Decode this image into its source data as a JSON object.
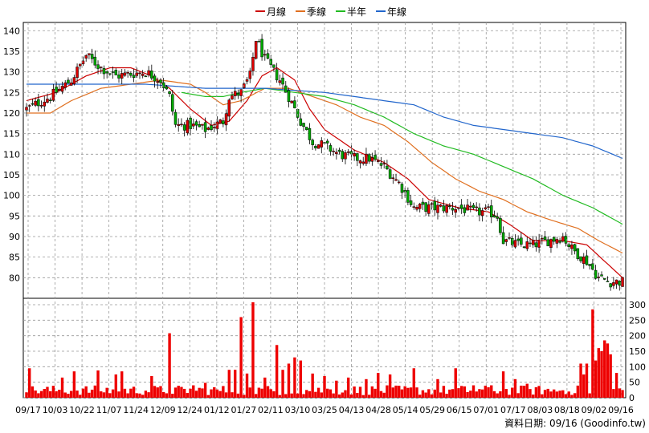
{
  "chart_data": [
    {
      "type": "candlestick",
      "legend": [
        {
          "name": "月線",
          "color": "#cc0000"
        },
        {
          "name": "季線",
          "color": "#e07020"
        },
        {
          "name": "半年",
          "color": "#22bb22"
        },
        {
          "name": "年線",
          "color": "#2266cc"
        }
      ],
      "legend_position": "top-center",
      "grid": true,
      "ylim": [
        75,
        142
      ],
      "yticks": [
        80,
        85,
        90,
        95,
        100,
        105,
        110,
        115,
        120,
        125,
        130,
        135,
        140
      ],
      "x_ticks": [
        "09/17",
        "10/03",
        "10/22",
        "11/07",
        "11/24",
        "12/09",
        "12/24",
        "01/12",
        "01/27",
        "02/11",
        "03/10",
        "03/25",
        "04/13",
        "04/28",
        "05/14",
        "05/29",
        "06/15",
        "07/01",
        "07/17",
        "08/03",
        "08/18",
        "09/02",
        "09/16"
      ],
      "close_anchors": [
        [
          0,
          121
        ],
        [
          8,
          124
        ],
        [
          15,
          128
        ],
        [
          20,
          134
        ],
        [
          25,
          131
        ],
        [
          30,
          129
        ],
        [
          40,
          130
        ],
        [
          45,
          128
        ],
        [
          48,
          124
        ],
        [
          50,
          117
        ],
        [
          55,
          117
        ],
        [
          60,
          116
        ],
        [
          66,
          118
        ],
        [
          68,
          124
        ],
        [
          72,
          125
        ],
        [
          75,
          129
        ],
        [
          77,
          138
        ],
        [
          80,
          133
        ],
        [
          85,
          128
        ],
        [
          88,
          124
        ],
        [
          92,
          118
        ],
        [
          96,
          113
        ],
        [
          100,
          112
        ],
        [
          105,
          110
        ],
        [
          110,
          109
        ],
        [
          115,
          109
        ],
        [
          120,
          107
        ],
        [
          125,
          103
        ],
        [
          130,
          97
        ],
        [
          135,
          97
        ],
        [
          140,
          97
        ],
        [
          145,
          97
        ],
        [
          150,
          96
        ],
        [
          155,
          96
        ],
        [
          158,
          95
        ],
        [
          160,
          89
        ],
        [
          165,
          88
        ],
        [
          170,
          88
        ],
        [
          175,
          89
        ],
        [
          180,
          90
        ],
        [
          183,
          87
        ],
        [
          188,
          84
        ],
        [
          192,
          80
        ],
        [
          196,
          79
        ],
        [
          200,
          79
        ]
      ],
      "series": [
        {
          "name": "月線",
          "anchors": [
            [
              0,
              123
            ],
            [
              10,
              125
            ],
            [
              20,
              129
            ],
            [
              28,
              131
            ],
            [
              35,
              131
            ],
            [
              42,
              129
            ],
            [
              48,
              126
            ],
            [
              55,
              121
            ],
            [
              62,
              117
            ],
            [
              68,
              118
            ],
            [
              74,
              123
            ],
            [
              79,
              129
            ],
            [
              84,
              131
            ],
            [
              90,
              128
            ],
            [
              95,
              121
            ],
            [
              100,
              116
            ],
            [
              110,
              111
            ],
            [
              120,
              108
            ],
            [
              128,
              104
            ],
            [
              135,
              99
            ],
            [
              145,
              97
            ],
            [
              155,
              96
            ],
            [
              162,
              93
            ],
            [
              170,
              89
            ],
            [
              180,
              89
            ],
            [
              188,
              88
            ],
            [
              194,
              84
            ],
            [
              200,
              80
            ]
          ]
        },
        {
          "name": "季線",
          "anchors": [
            [
              0,
              120
            ],
            [
              8,
              120
            ],
            [
              15,
              123
            ],
            [
              25,
              126
            ],
            [
              35,
              127
            ],
            [
              45,
              128
            ],
            [
              55,
              127
            ],
            [
              60,
              125
            ],
            [
              66,
              122
            ],
            [
              72,
              123
            ],
            [
              80,
              126
            ],
            [
              88,
              126
            ],
            [
              96,
              124
            ],
            [
              104,
              122
            ],
            [
              112,
              119
            ],
            [
              120,
              117
            ],
            [
              128,
              113
            ],
            [
              136,
              108
            ],
            [
              144,
              104
            ],
            [
              152,
              101
            ],
            [
              160,
              99
            ],
            [
              168,
              96
            ],
            [
              176,
              94
            ],
            [
              185,
              92
            ],
            [
              192,
              89
            ],
            [
              200,
              86
            ]
          ]
        },
        {
          "name": "半年",
          "anchors": [
            [
              52,
              125
            ],
            [
              60,
              124
            ],
            [
              66,
              124
            ],
            [
              72,
              125
            ],
            [
              80,
              126
            ],
            [
              90,
              125
            ],
            [
              100,
              124
            ],
            [
              110,
              122
            ],
            [
              120,
              119
            ],
            [
              130,
              115
            ],
            [
              140,
              112
            ],
            [
              150,
              110
            ],
            [
              160,
              107
            ],
            [
              170,
              104
            ],
            [
              180,
              100
            ],
            [
              190,
              97
            ],
            [
              200,
              93
            ]
          ]
        },
        {
          "name": "年線",
          "anchors": [
            [
              0,
              127
            ],
            [
              20,
              127
            ],
            [
              40,
              127
            ],
            [
              60,
              126
            ],
            [
              80,
              126
            ],
            [
              100,
              125
            ],
            [
              110,
              124
            ],
            [
              120,
              123
            ],
            [
              130,
              122
            ],
            [
              140,
              119
            ],
            [
              150,
              117
            ],
            [
              160,
              116
            ],
            [
              170,
              115
            ],
            [
              180,
              114
            ],
            [
              190,
              112
            ],
            [
              200,
              109
            ]
          ]
        }
      ]
    },
    {
      "type": "bar",
      "ylim": [
        0,
        300
      ],
      "yticks": [
        0,
        50,
        100,
        150,
        200,
        250,
        300
      ],
      "spikes": [
        [
          1,
          95
        ],
        [
          12,
          65
        ],
        [
          16,
          85
        ],
        [
          24,
          88
        ],
        [
          30,
          75
        ],
        [
          32,
          85
        ],
        [
          42,
          70
        ],
        [
          48,
          208
        ],
        [
          56,
          40
        ],
        [
          60,
          48
        ],
        [
          68,
          90
        ],
        [
          70,
          90
        ],
        [
          72,
          260
        ],
        [
          74,
          78
        ],
        [
          76,
          308
        ],
        [
          80,
          65
        ],
        [
          84,
          170
        ],
        [
          86,
          90
        ],
        [
          88,
          110
        ],
        [
          90,
          130
        ],
        [
          92,
          120
        ],
        [
          96,
          78
        ],
        [
          100,
          70
        ],
        [
          104,
          55
        ],
        [
          108,
          65
        ],
        [
          114,
          60
        ],
        [
          118,
          80
        ],
        [
          122,
          75
        ],
        [
          130,
          95
        ],
        [
          138,
          60
        ],
        [
          144,
          95
        ],
        [
          150,
          40
        ],
        [
          156,
          40
        ],
        [
          160,
          85
        ],
        [
          164,
          60
        ],
        [
          168,
          45
        ],
        [
          176,
          20
        ],
        [
          182,
          20
        ],
        [
          186,
          110
        ],
        [
          187,
          75
        ],
        [
          188,
          110
        ],
        [
          190,
          285
        ],
        [
          191,
          120
        ],
        [
          192,
          160
        ],
        [
          193,
          150
        ],
        [
          194,
          185
        ],
        [
          195,
          175
        ],
        [
          196,
          140
        ],
        [
          198,
          80
        ],
        [
          199,
          30
        ]
      ]
    }
  ],
  "footer_text": "資料日期: 09/16 (Goodinfo.tw)"
}
